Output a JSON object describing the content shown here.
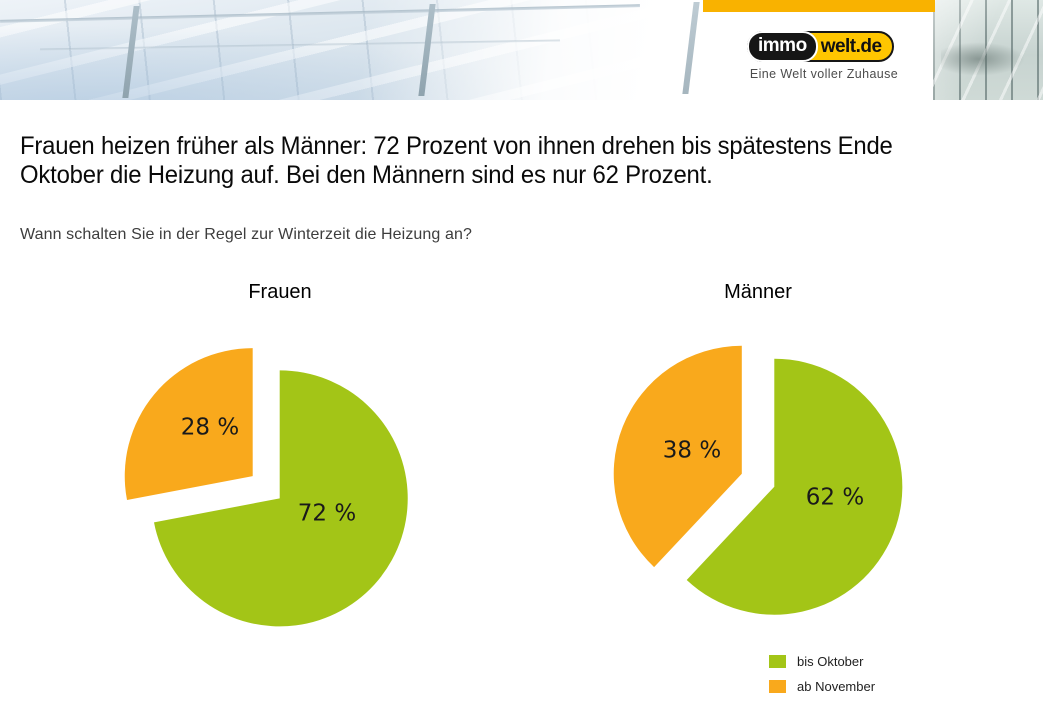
{
  "header": {
    "brand": {
      "logo_left": "immo",
      "logo_right": "welt.de",
      "tagline": "Eine Welt voller Zuhause"
    }
  },
  "headline": {
    "line1": "Frauen heizen früher als Männer: 72 Prozent von ihnen drehen bis spätestens Ende",
    "line2": "Oktober die Heizung auf. Bei den Männern sind es nur 62 Prozent."
  },
  "subtitle": "Wann schalten Sie in der Regel zur Winterzeit die Heizung an?",
  "colors": {
    "green": "#A3C517",
    "orange": "#F9A91C",
    "top_bar": "#F9B200",
    "logo_yellow": "#FFC600",
    "label_text": "#1a1a1a"
  },
  "legend": {
    "items": [
      {
        "label": "bis Oktober",
        "color": "#A3C517"
      },
      {
        "label": "ab November",
        "color": "#F9A91C"
      }
    ]
  },
  "chart_data": [
    {
      "type": "pie",
      "title": "Frauen",
      "categories": [
        "bis Oktober",
        "ab November"
      ],
      "values": [
        72,
        28
      ],
      "unit": "%",
      "data_labels": [
        "72 %",
        "28 %"
      ],
      "colors": [
        "#A3C517",
        "#F9A91C"
      ],
      "exploded": true,
      "legend_position": "bottom-right"
    },
    {
      "type": "pie",
      "title": "Männer",
      "categories": [
        "bis Oktober",
        "ab November"
      ],
      "values": [
        62,
        38
      ],
      "unit": "%",
      "data_labels": [
        "62 %",
        "38 %"
      ],
      "colors": [
        "#A3C517",
        "#F9A91C"
      ],
      "exploded": true,
      "legend_position": "bottom-right"
    }
  ]
}
